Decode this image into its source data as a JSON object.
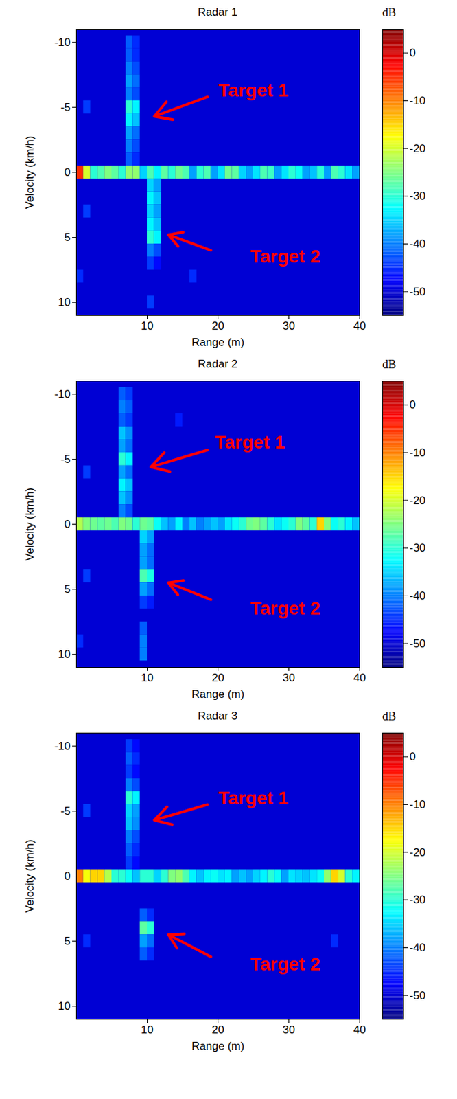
{
  "chart_data": [
    {
      "type": "heatmap",
      "title": "Radar 1",
      "x_label": "Range (m)",
      "y_label": "Velocity (km/h)",
      "xlim": [
        0,
        40
      ],
      "xticks": [
        10,
        20,
        30,
        40
      ],
      "ylim": [
        -11,
        11
      ],
      "yticks": [
        -10,
        -5,
        0,
        5,
        10
      ],
      "background": -50,
      "colorbar": {
        "label": "dB",
        "range": [
          -55,
          5
        ],
        "ticks": [
          0,
          -10,
          -20,
          -30,
          -40,
          -50
        ]
      },
      "cells": [
        [
          0.5,
          0,
          -5
        ],
        [
          1.5,
          0,
          -20
        ],
        [
          2.5,
          0,
          -30
        ],
        [
          3.5,
          0,
          -28
        ],
        [
          4.5,
          0,
          -25
        ],
        [
          5.5,
          0,
          -27
        ],
        [
          6.5,
          0,
          -30
        ],
        [
          7.5,
          0,
          -24
        ],
        [
          8.5,
          0,
          -24
        ],
        [
          9.5,
          0,
          -35
        ],
        [
          10.5,
          0,
          -28
        ],
        [
          11.5,
          0,
          -33
        ],
        [
          12.5,
          0,
          -27
        ],
        [
          13.5,
          0,
          -30
        ],
        [
          14.5,
          0,
          -26
        ],
        [
          15.5,
          0,
          -28
        ],
        [
          16.5,
          0,
          -38
        ],
        [
          17.5,
          0,
          -30
        ],
        [
          18.5,
          0,
          -28
        ],
        [
          19.5,
          0,
          -38
        ],
        [
          20.5,
          0,
          -34
        ],
        [
          21.5,
          0,
          -26
        ],
        [
          22.5,
          0,
          -27
        ],
        [
          23.5,
          0,
          -35
        ],
        [
          24.5,
          0,
          -38
        ],
        [
          25.5,
          0,
          -34
        ],
        [
          26.5,
          0,
          -28
        ],
        [
          27.5,
          0,
          -29
        ],
        [
          28.5,
          0,
          -38
        ],
        [
          29.5,
          0,
          -34
        ],
        [
          30.5,
          0,
          -30
        ],
        [
          31.5,
          0,
          -32
        ],
        [
          32.5,
          0,
          -38
        ],
        [
          33.5,
          0,
          -36
        ],
        [
          34.5,
          0,
          -30
        ],
        [
          35.5,
          0,
          -38
        ],
        [
          36.5,
          0,
          -28
        ],
        [
          37.5,
          0,
          -30
        ],
        [
          38.5,
          0,
          -34
        ],
        [
          39.5,
          0,
          -38
        ],
        [
          7.5,
          -10,
          -42
        ],
        [
          7.5,
          -9,
          -42
        ],
        [
          7.5,
          -8,
          -40
        ],
        [
          7.5,
          -7,
          -38
        ],
        [
          7.5,
          -6,
          -40
        ],
        [
          7.5,
          -5,
          -30
        ],
        [
          7.5,
          -4,
          -33
        ],
        [
          7.5,
          -3,
          -38
        ],
        [
          7.5,
          -2,
          -40
        ],
        [
          7.5,
          -1,
          -42
        ],
        [
          8.5,
          -10,
          -45
        ],
        [
          8.5,
          -9,
          -45
        ],
        [
          8.5,
          -8,
          -43
        ],
        [
          8.5,
          -7,
          -41
        ],
        [
          8.5,
          -6,
          -43
        ],
        [
          8.5,
          -5,
          -33
        ],
        [
          8.5,
          -4,
          -36
        ],
        [
          8.5,
          -3,
          -41
        ],
        [
          8.5,
          -2,
          -43
        ],
        [
          8.5,
          -1,
          -45
        ],
        [
          10.5,
          1,
          -35
        ],
        [
          10.5,
          2,
          -33
        ],
        [
          10.5,
          3,
          -35
        ],
        [
          10.5,
          4,
          -33
        ],
        [
          10.5,
          5,
          -30
        ],
        [
          10.5,
          6,
          -40
        ],
        [
          10.5,
          7,
          -44
        ],
        [
          11.5,
          1,
          -38
        ],
        [
          11.5,
          2,
          -36
        ],
        [
          11.5,
          3,
          -38
        ],
        [
          11.5,
          4,
          -36
        ],
        [
          11.5,
          5,
          -33
        ],
        [
          11.5,
          6,
          -43
        ],
        [
          11.5,
          7,
          -47
        ],
        [
          1.5,
          -5,
          -44
        ],
        [
          1.5,
          3,
          -44
        ],
        [
          0.5,
          8,
          -45
        ],
        [
          16.5,
          8,
          -45
        ],
        [
          10.5,
          10,
          -44
        ]
      ],
      "annotations": [
        {
          "text": "Target 1",
          "text_at": [
            25,
            -6.3
          ],
          "arrow_from": [
            18.5,
            -5.8
          ],
          "points_to": [
            11,
            -4.3
          ]
        },
        {
          "text": "Target 2",
          "text_at": [
            29.5,
            6.5
          ],
          "arrow_from": [
            19,
            6
          ],
          "points_to": [
            13,
            4.8
          ]
        }
      ]
    },
    {
      "type": "heatmap",
      "title": "Radar 2",
      "x_label": "Range (m)",
      "y_label": "Velocity (km/h)",
      "xlim": [
        0,
        40
      ],
      "xticks": [
        10,
        20,
        30,
        40
      ],
      "ylim": [
        -11,
        11
      ],
      "yticks": [
        -10,
        -5,
        0,
        5,
        10
      ],
      "background": -50,
      "colorbar": {
        "label": "dB",
        "range": [
          -55,
          5
        ],
        "ticks": [
          0,
          -10,
          -20,
          -30,
          -40,
          -50
        ]
      },
      "cells": [
        [
          0.5,
          0,
          -22
        ],
        [
          1.5,
          0,
          -25
        ],
        [
          2.5,
          0,
          -26
        ],
        [
          3.5,
          0,
          -27
        ],
        [
          4.5,
          0,
          -26
        ],
        [
          5.5,
          0,
          -28
        ],
        [
          6.5,
          0,
          -25
        ],
        [
          7.5,
          0,
          -26
        ],
        [
          8.5,
          0,
          -30
        ],
        [
          9.5,
          0,
          -26
        ],
        [
          10.5,
          0,
          -27
        ],
        [
          11.5,
          0,
          -32
        ],
        [
          12.5,
          0,
          -36
        ],
        [
          13.5,
          0,
          -38
        ],
        [
          14.5,
          0,
          -33
        ],
        [
          15.5,
          0,
          -40
        ],
        [
          16.5,
          0,
          -36
        ],
        [
          17.5,
          0,
          -40
        ],
        [
          18.5,
          0,
          -38
        ],
        [
          19.5,
          0,
          -36
        ],
        [
          20.5,
          0,
          -38
        ],
        [
          21.5,
          0,
          -34
        ],
        [
          22.5,
          0,
          -32
        ],
        [
          23.5,
          0,
          -30
        ],
        [
          24.5,
          0,
          -26
        ],
        [
          25.5,
          0,
          -25
        ],
        [
          26.5,
          0,
          -27
        ],
        [
          27.5,
          0,
          -30
        ],
        [
          28.5,
          0,
          -34
        ],
        [
          29.5,
          0,
          -32
        ],
        [
          30.5,
          0,
          -30
        ],
        [
          31.5,
          0,
          -25
        ],
        [
          32.5,
          0,
          -27
        ],
        [
          33.5,
          0,
          -30
        ],
        [
          34.5,
          0,
          -15
        ],
        [
          35.5,
          0,
          -25
        ],
        [
          36.5,
          0,
          -32
        ],
        [
          37.5,
          0,
          -30
        ],
        [
          38.5,
          0,
          -33
        ],
        [
          39.5,
          0,
          -36
        ],
        [
          6.5,
          -10,
          -42
        ],
        [
          6.5,
          -9,
          -40
        ],
        [
          6.5,
          -8,
          -42
        ],
        [
          6.5,
          -7,
          -36
        ],
        [
          6.5,
          -6,
          -38
        ],
        [
          6.5,
          -5,
          -30
        ],
        [
          6.5,
          -4,
          -38
        ],
        [
          6.5,
          -3,
          -33
        ],
        [
          6.5,
          -2,
          -36
        ],
        [
          6.5,
          -1,
          -40
        ],
        [
          7.5,
          -10,
          -44
        ],
        [
          7.5,
          -9,
          -42
        ],
        [
          7.5,
          -8,
          -44
        ],
        [
          7.5,
          -7,
          -39
        ],
        [
          7.5,
          -6,
          -41
        ],
        [
          7.5,
          -5,
          -33
        ],
        [
          7.5,
          -4,
          -41
        ],
        [
          7.5,
          -3,
          -36
        ],
        [
          7.5,
          -2,
          -39
        ],
        [
          7.5,
          -1,
          -43
        ],
        [
          9.5,
          1,
          -35
        ],
        [
          9.5,
          2,
          -38
        ],
        [
          9.5,
          3,
          -38
        ],
        [
          9.5,
          4,
          -28
        ],
        [
          9.5,
          5,
          -38
        ],
        [
          9.5,
          6,
          -44
        ],
        [
          9.5,
          8,
          -42
        ],
        [
          9.5,
          9,
          -40
        ],
        [
          9.5,
          10,
          -40
        ],
        [
          10.5,
          1,
          -38
        ],
        [
          10.5,
          2,
          -41
        ],
        [
          10.5,
          3,
          -41
        ],
        [
          10.5,
          4,
          -31
        ],
        [
          10.5,
          5,
          -41
        ],
        [
          10.5,
          6,
          -46
        ],
        [
          1.5,
          -4,
          -44
        ],
        [
          1.5,
          4,
          -44
        ],
        [
          0.5,
          9,
          -45
        ],
        [
          14.5,
          -8,
          -46
        ]
      ],
      "annotations": [
        {
          "text": "Target 1",
          "text_at": [
            24.5,
            -6.3
          ],
          "arrow_from": [
            18.5,
            -5.7
          ],
          "points_to": [
            10.5,
            -4.4
          ]
        },
        {
          "text": "Target 2",
          "text_at": [
            29.5,
            6.5
          ],
          "arrow_from": [
            19,
            5.8
          ],
          "points_to": [
            13,
            4.5
          ]
        }
      ]
    },
    {
      "type": "heatmap",
      "title": "Radar 3",
      "x_label": "Range (m)",
      "y_label": "Velocity (km/h)",
      "xlim": [
        0,
        40
      ],
      "xticks": [
        10,
        20,
        30,
        40
      ],
      "ylim": [
        -11,
        11
      ],
      "yticks": [
        -10,
        -5,
        0,
        5,
        10
      ],
      "background": -50,
      "colorbar": {
        "label": "dB",
        "range": [
          -55,
          5
        ],
        "ticks": [
          0,
          -10,
          -20,
          -30,
          -40,
          -50
        ]
      },
      "cells": [
        [
          0.5,
          0,
          -10
        ],
        [
          1.5,
          0,
          -18
        ],
        [
          2.5,
          0,
          -15
        ],
        [
          3.5,
          0,
          -15
        ],
        [
          4.5,
          0,
          -22
        ],
        [
          5.5,
          0,
          -30
        ],
        [
          6.5,
          0,
          -30
        ],
        [
          7.5,
          0,
          -32
        ],
        [
          8.5,
          0,
          -36
        ],
        [
          9.5,
          0,
          -30
        ],
        [
          10.5,
          0,
          -30
        ],
        [
          11.5,
          0,
          -35
        ],
        [
          12.5,
          0,
          -30
        ],
        [
          13.5,
          0,
          -25
        ],
        [
          14.5,
          0,
          -24
        ],
        [
          15.5,
          0,
          -28
        ],
        [
          16.5,
          0,
          -33
        ],
        [
          17.5,
          0,
          -36
        ],
        [
          18.5,
          0,
          -33
        ],
        [
          19.5,
          0,
          -32
        ],
        [
          20.5,
          0,
          -34
        ],
        [
          21.5,
          0,
          -33
        ],
        [
          22.5,
          0,
          -38
        ],
        [
          23.5,
          0,
          -36
        ],
        [
          24.5,
          0,
          -38
        ],
        [
          25.5,
          0,
          -35
        ],
        [
          26.5,
          0,
          -33
        ],
        [
          27.5,
          0,
          -30
        ],
        [
          28.5,
          0,
          -32
        ],
        [
          29.5,
          0,
          -38
        ],
        [
          30.5,
          0,
          -34
        ],
        [
          31.5,
          0,
          -35
        ],
        [
          32.5,
          0,
          -36
        ],
        [
          33.5,
          0,
          -34
        ],
        [
          34.5,
          0,
          -32
        ],
        [
          35.5,
          0,
          -24
        ],
        [
          36.5,
          0,
          -15
        ],
        [
          37.5,
          0,
          -20
        ],
        [
          38.5,
          0,
          -30
        ],
        [
          39.5,
          0,
          -33
        ],
        [
          7.5,
          -10,
          -44
        ],
        [
          7.5,
          -9,
          -42
        ],
        [
          7.5,
          -8,
          -44
        ],
        [
          7.5,
          -7,
          -40
        ],
        [
          7.5,
          -6,
          -30
        ],
        [
          7.5,
          -5,
          -35
        ],
        [
          7.5,
          -4,
          -36
        ],
        [
          7.5,
          -3,
          -40
        ],
        [
          7.5,
          -2,
          -42
        ],
        [
          7.5,
          -1,
          -44
        ],
        [
          8.5,
          -10,
          -47
        ],
        [
          8.5,
          -9,
          -45
        ],
        [
          8.5,
          -8,
          -47
        ],
        [
          8.5,
          -7,
          -43
        ],
        [
          8.5,
          -6,
          -33
        ],
        [
          8.5,
          -5,
          -38
        ],
        [
          8.5,
          -4,
          -39
        ],
        [
          8.5,
          -3,
          -43
        ],
        [
          8.5,
          -2,
          -45
        ],
        [
          8.5,
          -1,
          -47
        ],
        [
          9.5,
          3,
          -42
        ],
        [
          9.5,
          4,
          -27
        ],
        [
          9.5,
          5,
          -38
        ],
        [
          9.5,
          6,
          -42
        ],
        [
          10.5,
          3,
          -45
        ],
        [
          10.5,
          4,
          -30
        ],
        [
          10.5,
          5,
          -41
        ],
        [
          10.5,
          6,
          -45
        ],
        [
          1.5,
          -5,
          -44
        ],
        [
          1.5,
          5,
          -45
        ],
        [
          36.5,
          5,
          -45
        ]
      ],
      "annotations": [
        {
          "text": "Target 1",
          "text_at": [
            25,
            -6
          ],
          "arrow_from": [
            18.5,
            -5.5
          ],
          "points_to": [
            11,
            -4.3
          ]
        },
        {
          "text": "Target 2",
          "text_at": [
            29.5,
            6.8
          ],
          "arrow_from": [
            19,
            6.2
          ],
          "points_to": [
            13,
            4.5
          ]
        }
      ]
    }
  ]
}
